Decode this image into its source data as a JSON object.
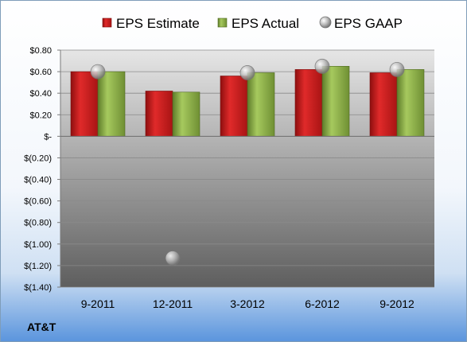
{
  "chart_data": {
    "type": "bar",
    "categories": [
      "9-2011",
      "12-2011",
      "3-2012",
      "6-2012",
      "9-2012"
    ],
    "series": [
      {
        "name": "EPS Estimate",
        "kind": "bar",
        "color": "#c81e1e",
        "values": [
          0.6,
          0.42,
          0.56,
          0.62,
          0.59
        ]
      },
      {
        "name": "EPS Actual",
        "kind": "bar",
        "color": "#8cb04a",
        "values": [
          0.6,
          0.41,
          0.59,
          0.65,
          0.62
        ]
      },
      {
        "name": "EPS GAAP",
        "kind": "marker",
        "color": "#a9a9a9",
        "values": [
          0.6,
          -1.13,
          0.59,
          0.65,
          0.62
        ]
      }
    ],
    "y_ticks": [
      "$(1.40)",
      "$(1.20)",
      "$(1.00)",
      "$(0.80)",
      "$(0.60)",
      "$(0.40)",
      "$(0.20)",
      "$-",
      "$0.20",
      "$0.40",
      "$0.60",
      "$0.80"
    ],
    "ylim": [
      -1.4,
      0.8
    ],
    "grid": true,
    "legend": "top"
  },
  "company": "AT&T"
}
